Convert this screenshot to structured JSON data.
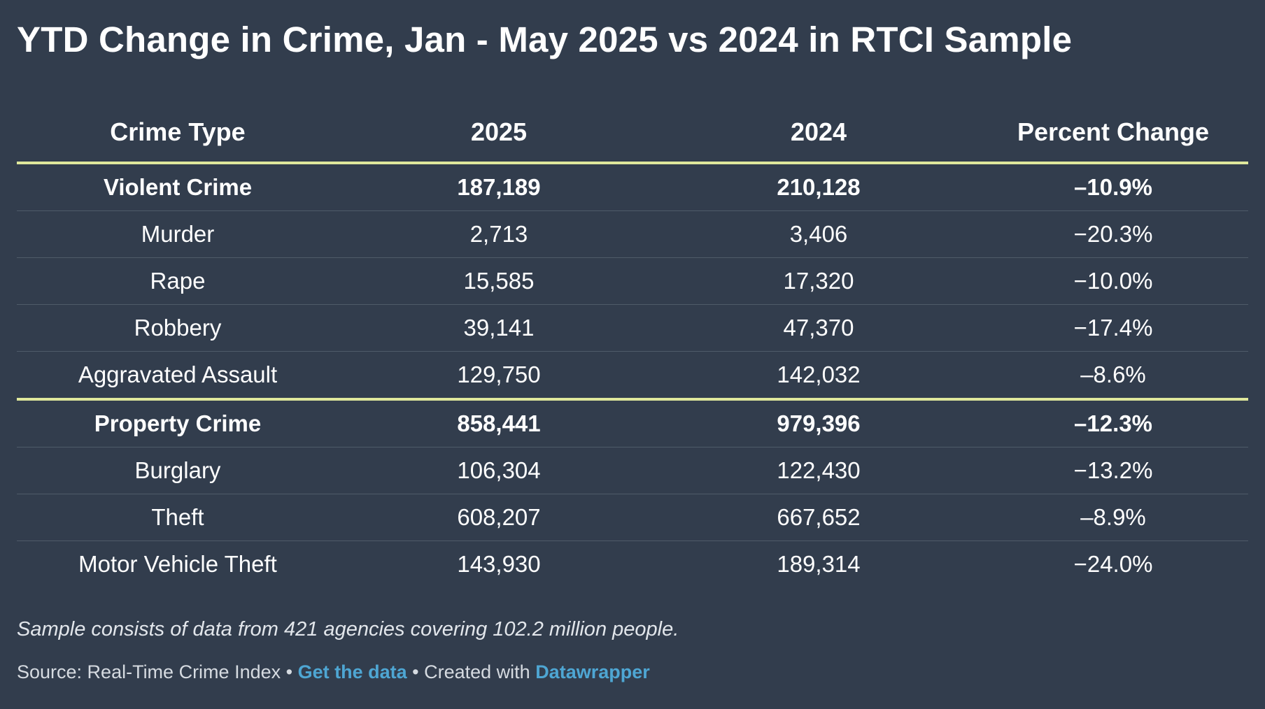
{
  "title": "YTD Change in Crime, Jan - May 2025 vs 2024 in RTCI Sample",
  "colors": {
    "background": "#323d4d",
    "text": "#ffffff",
    "section_rule": "#dfe89c",
    "row_rule": "#4f5b69",
    "link": "#4ea6d3"
  },
  "chart_data": {
    "type": "table",
    "columns": [
      "Crime Type",
      "2025",
      "2024",
      "Percent Change"
    ],
    "rows": [
      {
        "cells": [
          "Violent Crime",
          "187,189",
          "210,128",
          "–10.9%"
        ],
        "bold": true,
        "section_end": false
      },
      {
        "cells": [
          "Murder",
          "2,713",
          "3,406",
          "−20.3%"
        ],
        "bold": false,
        "section_end": false
      },
      {
        "cells": [
          "Rape",
          "15,585",
          "17,320",
          "−10.0%"
        ],
        "bold": false,
        "section_end": false
      },
      {
        "cells": [
          "Robbery",
          "39,141",
          "47,370",
          "−17.4%"
        ],
        "bold": false,
        "section_end": false
      },
      {
        "cells": [
          "Aggravated Assault",
          "129,750",
          "142,032",
          "–8.6%"
        ],
        "bold": false,
        "section_end": true
      },
      {
        "cells": [
          "Property Crime",
          "858,441",
          "979,396",
          "–12.3%"
        ],
        "bold": true,
        "section_end": false
      },
      {
        "cells": [
          "Burglary",
          "106,304",
          "122,430",
          "−13.2%"
        ],
        "bold": false,
        "section_end": false
      },
      {
        "cells": [
          "Theft",
          "608,207",
          "667,652",
          "–8.9%"
        ],
        "bold": false,
        "section_end": false
      },
      {
        "cells": [
          "Motor Vehicle Theft",
          "143,930",
          "189,314",
          "−24.0%"
        ],
        "bold": false,
        "section_end": false
      }
    ]
  },
  "note": "Sample consists of data from 421 agencies covering 102.2 million people.",
  "footer": {
    "source_text": "Source: Real-Time Crime Index",
    "separator": " • ",
    "get_data_label": "Get the data",
    "created_with_text": "Created with",
    "datawrapper_label": "Datawrapper"
  }
}
